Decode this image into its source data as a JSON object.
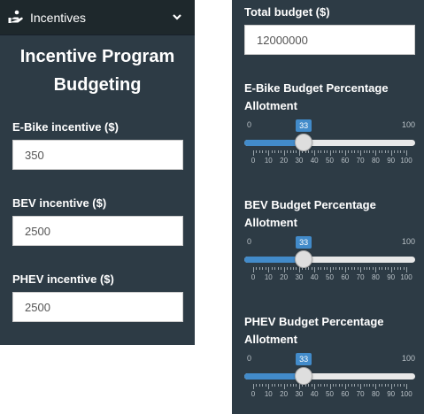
{
  "sidebar": {
    "menu_label": "Incentives",
    "menu_icon": "hand-coins-icon",
    "heading_line1": "Incentive Program",
    "heading_line2": "Budgeting",
    "ebike": {
      "label": "E-Bike incentive ($)",
      "value": "350"
    },
    "bev": {
      "label": "BEV incentive ($)",
      "value": "2500"
    },
    "phev": {
      "label": "PHEV incentive ($)",
      "value": "2500"
    }
  },
  "budget": {
    "total_label": "Total budget ($)",
    "total_value": "12000000",
    "sliders": [
      {
        "label_line1": "E-Bike Budget Percentage",
        "label_line2": "Allotment",
        "min": "0",
        "max": "100",
        "value": "33",
        "ticks": [
          "0",
          "10",
          "20",
          "30",
          "40",
          "50",
          "60",
          "70",
          "80",
          "90",
          "100"
        ]
      },
      {
        "label_line1": "BEV Budget Percentage",
        "label_line2": "Allotment",
        "min": "0",
        "max": "100",
        "value": "33",
        "ticks": [
          "0",
          "10",
          "20",
          "30",
          "40",
          "50",
          "60",
          "70",
          "80",
          "90",
          "100"
        ]
      },
      {
        "label_line1": "PHEV Budget Percentage",
        "label_line2": "Allotment",
        "min": "0",
        "max": "100",
        "value": "33",
        "ticks": [
          "0",
          "10",
          "20",
          "30",
          "40",
          "50",
          "60",
          "70",
          "80",
          "90",
          "100"
        ]
      }
    ]
  },
  "colors": {
    "panel_bg": "#2d3b45",
    "menu_bg": "#1e282c",
    "accent": "#428bca"
  }
}
